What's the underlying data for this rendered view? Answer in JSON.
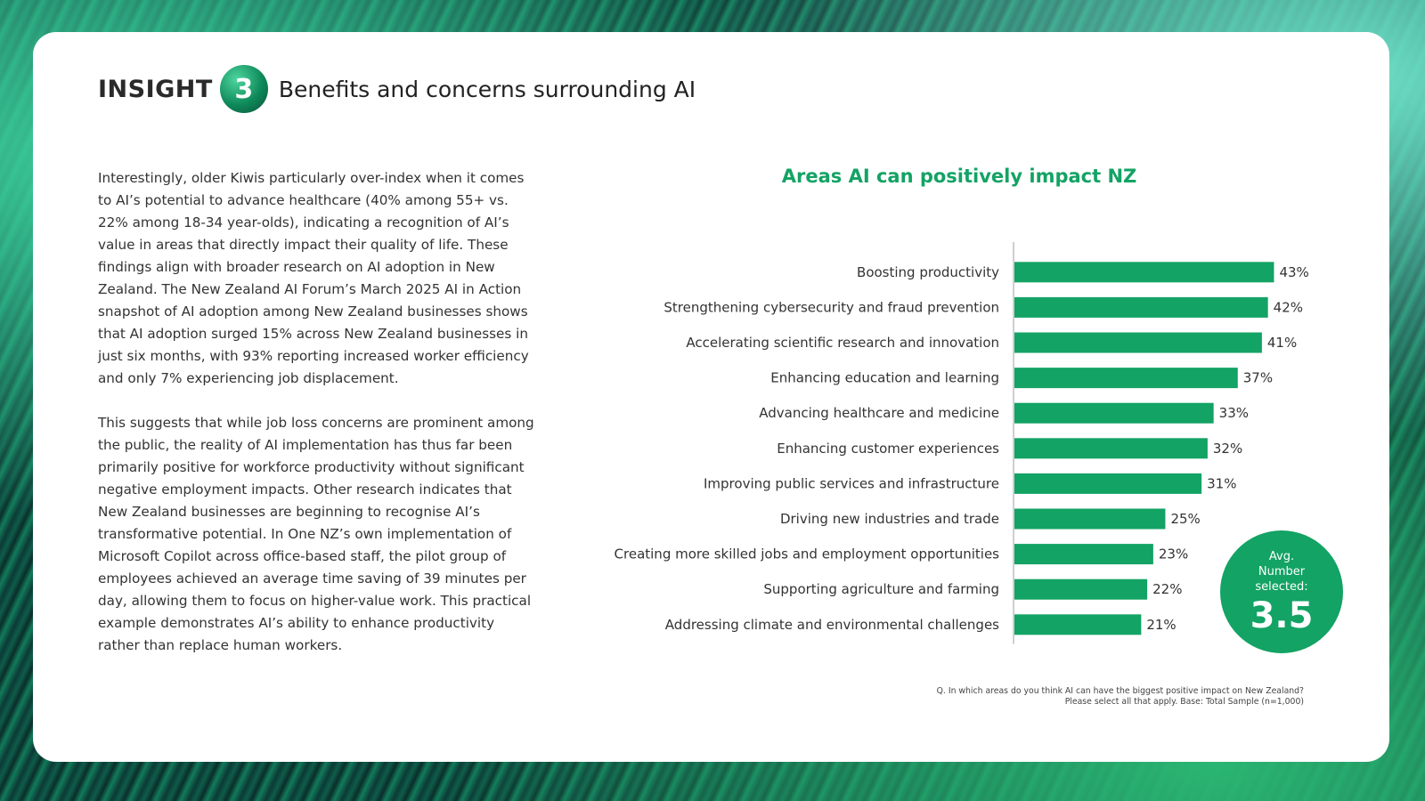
{
  "header": {
    "insight_label": "INSIGHT",
    "insight_number": "3",
    "title": "Benefits and concerns surrounding AI"
  },
  "body": {
    "paragraph_1": "Interestingly, older Kiwis particularly over-index when it comes to AI’s potential to advance healthcare (40% among 55+ vs. 22% among 18-34 year-olds), indicating a recognition of AI’s value in areas that directly impact their quality of life. These findings align with broader research on AI adoption in New Zealand. The New Zealand AI Forum’s March 2025 AI in Action snapshot of AI adoption among New Zealand businesses shows that AI adoption surged 15% across New Zealand businesses in just six months, with 93% reporting increased worker efficiency and only 7% experiencing job displacement.",
    "paragraph_2": "This suggests that while job loss concerns are prominent among the public, the reality of AI implementation has thus far been primarily positive for workforce productivity without significant negative employment impacts. Other research indicates that New Zealand businesses are beginning to recognise AI’s transformative potential. In One NZ’s own implementation of Microsoft Copilot across office-based staff, the pilot group of employees achieved an average time saving of 39 minutes per day, allowing them to focus on higher-value work. This practical example demonstrates AI’s ability to enhance productivity rather than replace human workers."
  },
  "chart_data": {
    "type": "bar",
    "orientation": "horizontal",
    "title": "Areas AI can positively impact NZ",
    "categories": [
      "Boosting productivity",
      "Strengthening cybersecurity and fraud prevention",
      "Accelerating scientific research and innovation",
      "Enhancing education and learning",
      "Advancing healthcare and medicine",
      "Enhancing customer experiences",
      "Improving public services and infrastructure",
      "Driving new industries and trade",
      "Creating more skilled jobs and employment opportunities",
      "Supporting agriculture and farming",
      "Addressing climate and environmental challenges"
    ],
    "values": [
      43,
      42,
      41,
      37,
      33,
      32,
      31,
      25,
      23,
      22,
      21
    ],
    "value_labels": [
      "43%",
      "42%",
      "41%",
      "37%",
      "33%",
      "32%",
      "31%",
      "25%",
      "23%",
      "22%",
      "21%"
    ],
    "xlim": [
      0,
      45
    ],
    "bar_color": "#13a364"
  },
  "avg": {
    "label_line1": "Avg.",
    "label_line2": "Number",
    "label_line3": "selected:",
    "value": "3.5"
  },
  "footnote": {
    "line1": "Q. In which areas do you think AI can have the biggest positive impact on New Zealand?",
    "line2": "Please select all that apply. Base: Total Sample (n=1,000)"
  },
  "colors": {
    "accent": "#13a364",
    "text": "#333333"
  }
}
